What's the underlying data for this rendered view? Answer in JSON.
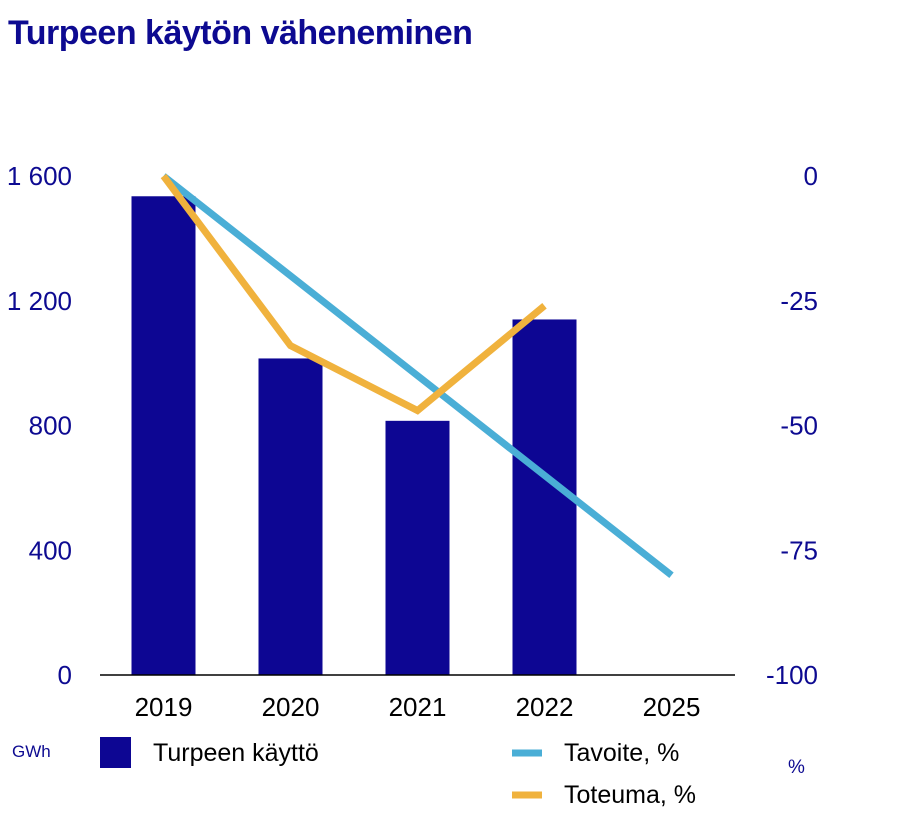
{
  "colors": {
    "title": "#0d0a91",
    "bar": "#0d0693",
    "axis_text_left": "#0d0a91",
    "axis_text_right": "#0d0a91",
    "category_text": "#000000",
    "legend_text": "#000000",
    "baseline": "#000000",
    "tavoite": "#4aaed6",
    "toteuma": "#f0b23d"
  },
  "chart_data": {
    "type": "bar",
    "title": "Turpeen käytön väheneminen",
    "categories": [
      "2019",
      "2020",
      "2021",
      "2022",
      "2025"
    ],
    "left_axis": {
      "unit": "GWh",
      "range": [
        0,
        1600
      ],
      "ticks": [
        0,
        400,
        800,
        1200,
        1600
      ],
      "tick_labels": [
        "0",
        "400",
        "800",
        "1 200",
        "1 600"
      ]
    },
    "right_axis": {
      "unit": "%",
      "range": [
        -100,
        0
      ],
      "ticks": [
        -100,
        -75,
        -50,
        -25,
        0
      ],
      "tick_labels": [
        "-100",
        "-75",
        "-50",
        "-25",
        "0"
      ]
    },
    "series": [
      {
        "name": "Turpeen käyttö",
        "type": "bar",
        "axis": "left",
        "values": [
          1535,
          1015,
          815,
          1140,
          null
        ]
      },
      {
        "name": "Tavoite, %",
        "type": "line",
        "axis": "right",
        "values": [
          0,
          -20,
          -40,
          -60,
          -80
        ]
      },
      {
        "name": "Toteuma, %",
        "type": "line",
        "axis": "right",
        "values": [
          0,
          -34,
          -47,
          -26,
          null
        ]
      }
    ],
    "grid": false,
    "legend": "bottom"
  }
}
